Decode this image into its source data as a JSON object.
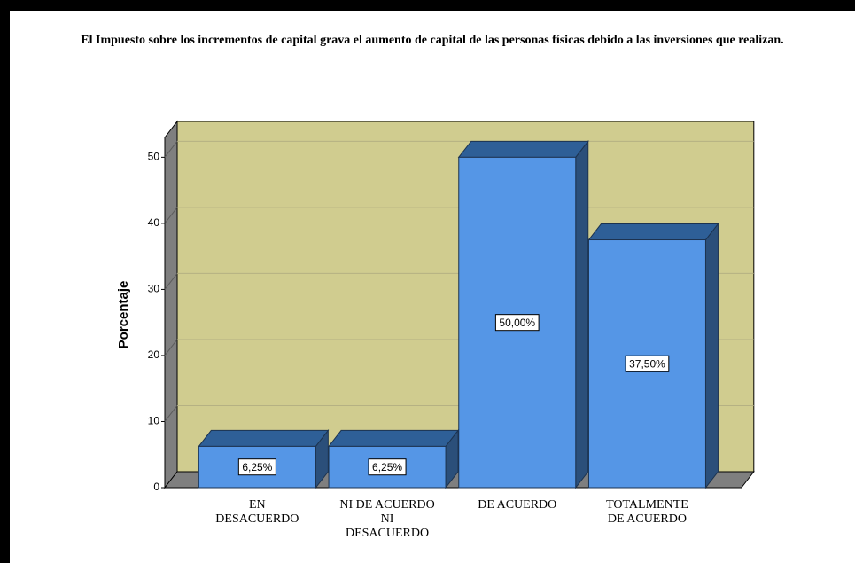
{
  "chart_data": {
    "type": "bar3d",
    "title": "El Impuesto sobre los incrementos de capital grava el aumento de capital de las personas físicas debido a las inversiones que realizan.",
    "y_label": "Porcentaje",
    "categories": [
      "EN DESACUERDO",
      "NI DE ACUERDO NI DESACUERDO",
      "DE ACUERDO",
      "TOTALMENTE DE ACUERDO"
    ],
    "values": [
      6.25,
      6.25,
      50,
      37.5
    ],
    "value_labels": [
      "6,25%",
      "6,25%",
      "50,00%",
      "37,50%"
    ],
    "color": "#5596e6",
    "ylim": [
      0,
      53
    ],
    "yticks": [
      0,
      10,
      20,
      30,
      40,
      50
    ],
    "grid": true
  }
}
